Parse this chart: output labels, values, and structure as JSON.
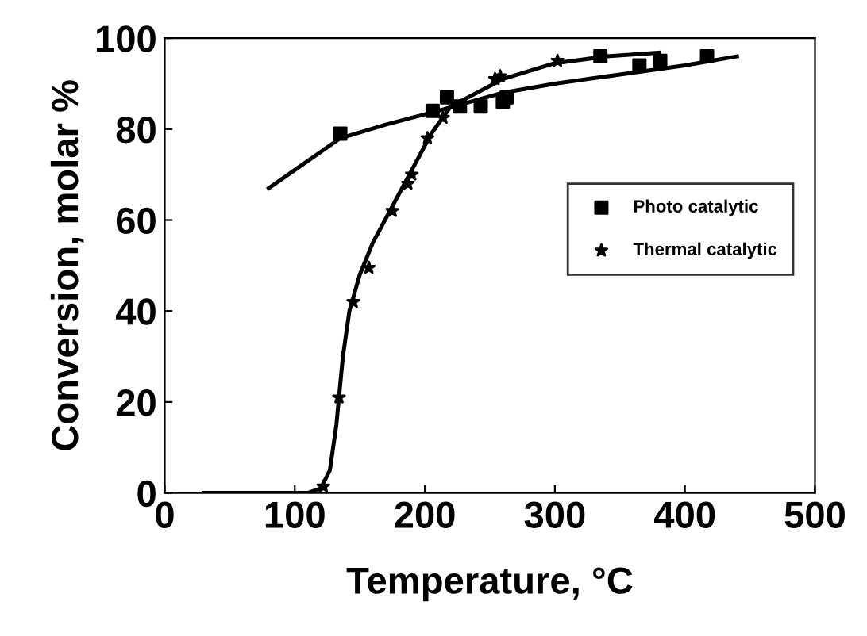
{
  "chart_data": {
    "type": "scatter",
    "xlabel": "Temperature, °C",
    "ylabel": "Conversion, molar %",
    "xlim": [
      0,
      500
    ],
    "ylim": [
      0,
      100
    ],
    "xticks": [
      0,
      100,
      200,
      300,
      400,
      500
    ],
    "yticks": [
      0,
      20,
      40,
      60,
      80,
      100
    ],
    "grid": false,
    "legend": "right",
    "series": [
      {
        "name": "Photo catalytic",
        "marker": "square",
        "color": "#000000",
        "x": [
          135,
          206,
          217,
          227,
          243,
          260,
          263,
          335,
          365,
          381,
          417
        ],
        "values": [
          79,
          84,
          87,
          85,
          85,
          86,
          87,
          96,
          94,
          95,
          96
        ]
      },
      {
        "name": "Thermal catalytic",
        "marker": "star",
        "color": "#000000",
        "x": [
          122,
          134,
          145,
          157,
          175,
          187,
          190,
          202,
          214,
          254,
          258,
          302
        ],
        "values": [
          1.4,
          21,
          42,
          49.5,
          62,
          68,
          70,
          78,
          82.5,
          91,
          91.6,
          95
        ]
      },
      {
        "type": "line",
        "color": "#000000",
        "x": [
          80,
          100,
          135,
          170,
          210,
          260,
          300,
          350,
          400,
          440
        ],
        "values": [
          67,
          71,
          78,
          81,
          84,
          88,
          90,
          92,
          94,
          96
        ]
      },
      {
        "type": "line",
        "color": "#000000",
        "x": [
          30,
          110,
          120,
          127,
          132,
          137,
          142,
          150,
          160,
          175,
          190,
          205,
          220,
          240,
          260,
          300,
          340,
          380
        ],
        "values": [
          0,
          0,
          1,
          5,
          15,
          30,
          40,
          48,
          55,
          63,
          71,
          79,
          85,
          88,
          91,
          94.5,
          96,
          96.8
        ]
      }
    ]
  }
}
